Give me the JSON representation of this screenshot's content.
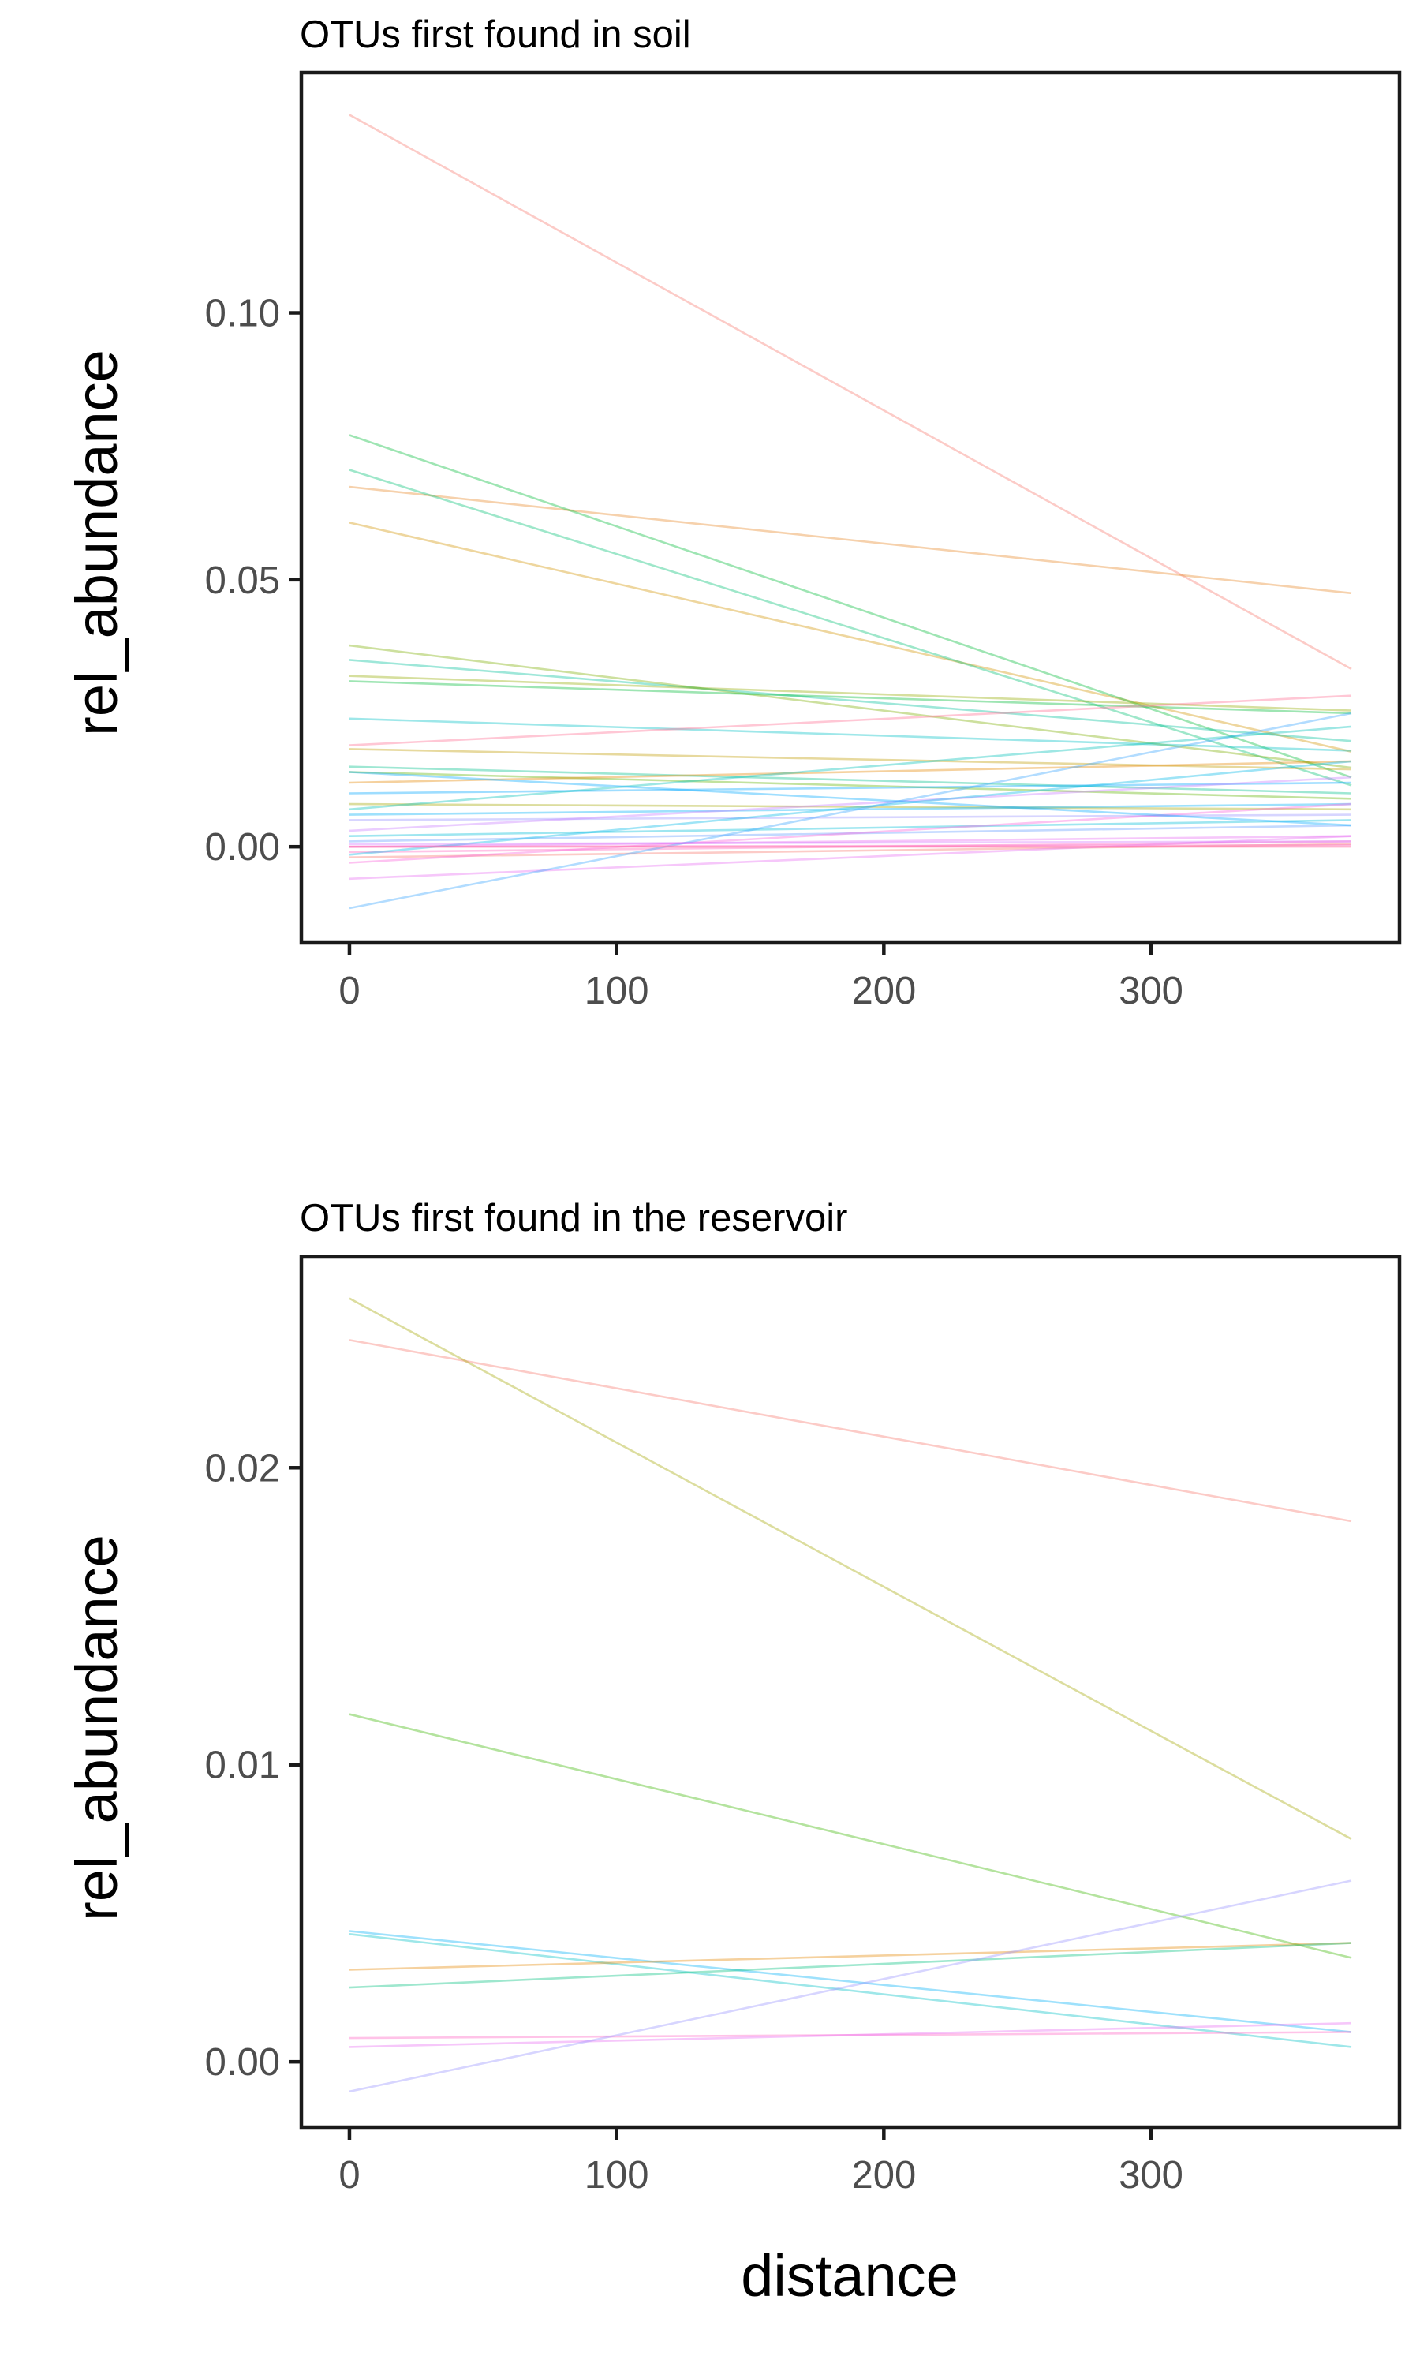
{
  "figure": {
    "shared_xlabel": "distance"
  },
  "chart_data": [
    {
      "type": "line",
      "title": "OTUs first found in soil",
      "xlabel": "",
      "ylabel": "rel_abundance",
      "xlim": [
        -18,
        393
      ],
      "ylim": [
        -0.018,
        0.145
      ],
      "xticks": [
        0,
        100,
        200,
        300
      ],
      "xtick_labels": [
        "0",
        "100",
        "200",
        "300"
      ],
      "yticks": [
        0.0,
        0.05,
        0.1
      ],
      "ytick_labels": [
        "0.00",
        "0.05",
        "0.10"
      ],
      "grid": false,
      "legend": "none",
      "x": [
        0,
        375
      ],
      "series": [
        {
          "values": [
            0.1371,
            0.0333
          ],
          "color": "#F8766D"
        },
        {
          "values": [
            0.0674,
            0.0475
          ],
          "color": "#E88526"
        },
        {
          "values": [
            0.0607,
            0.0178
          ],
          "color": "#D39200"
        },
        {
          "values": [
            0.0771,
            0.013
          ],
          "color": "#00BA38"
        },
        {
          "values": [
            0.0706,
            0.0115
          ],
          "color": "#00BF74"
        },
        {
          "values": [
            0.0377,
            0.0148
          ],
          "color": "#7CAE00"
        },
        {
          "values": [
            0.035,
            0.0198
          ],
          "color": "#00C19A"
        },
        {
          "values": [
            0.032,
            0.0255
          ],
          "color": "#93AA00"
        },
        {
          "values": [
            0.031,
            0.025
          ],
          "color": "#00BA38"
        },
        {
          "values": [
            0.024,
            0.018
          ],
          "color": "#00BFC4"
        },
        {
          "values": [
            0.019,
            0.0283
          ],
          "color": "#FF6C91"
        },
        {
          "values": [
            0.0183,
            0.0145
          ],
          "color": "#C09B00"
        },
        {
          "values": [
            0.015,
            0.01
          ],
          "color": "#00C08B"
        },
        {
          "values": [
            0.014,
            0.009
          ],
          "color": "#5EB300"
        },
        {
          "values": [
            0.012,
            0.016
          ],
          "color": "#E58700"
        },
        {
          "values": [
            0.01,
            0.012
          ],
          "color": "#00A6FF"
        },
        {
          "values": [
            0.008,
            0.007
          ],
          "color": "#A3A500"
        },
        {
          "values": [
            0.006,
            0.008
          ],
          "color": "#00B0F6"
        },
        {
          "values": [
            0.005,
            0.006
          ],
          "color": "#9590FF"
        },
        {
          "values": [
            0.003,
            0.013
          ],
          "color": "#C77CFF"
        },
        {
          "values": [
            0.002,
            0.005
          ],
          "color": "#00BCD8"
        },
        {
          "values": [
            0.001,
            0.004
          ],
          "color": "#619CFF"
        },
        {
          "values": [
            0.0,
            0.002
          ],
          "color": "#E76BF3"
        },
        {
          "values": [
            -0.001,
            0.001
          ],
          "color": "#FF62BC"
        },
        {
          "values": [
            -0.002,
            0.0005
          ],
          "color": "#F8766D"
        },
        {
          "values": [
            -0.0015,
            0.016
          ],
          "color": "#00B8E7"
        },
        {
          "values": [
            -0.003,
            0.008
          ],
          "color": "#FA62DB"
        },
        {
          "values": [
            -0.006,
            0.002
          ],
          "color": "#E76BF3"
        },
        {
          "values": [
            -0.0115,
            0.025
          ],
          "color": "#35A2FF"
        },
        {
          "values": [
            0.0,
            0.0003
          ],
          "color": "#FF61C3"
        },
        {
          "values": [
            0.0,
            0.0
          ],
          "color": "#FF6A98"
        },
        {
          "values": [
            0.0005,
            0.001
          ],
          "color": "#D575FE"
        },
        {
          "values": [
            0.007,
            0.0225
          ],
          "color": "#00C0B8"
        },
        {
          "values": [
            0.014,
            0.004
          ],
          "color": "#00A9FF"
        }
      ]
    },
    {
      "type": "line",
      "title": "OTUs first found in the reservoir",
      "xlabel": "distance",
      "ylabel": "rel_abundance",
      "xlim": [
        -18,
        393
      ],
      "ylim": [
        -0.0022,
        0.0271
      ],
      "xticks": [
        0,
        100,
        200,
        300
      ],
      "xtick_labels": [
        "0",
        "100",
        "200",
        "300"
      ],
      "yticks": [
        0.0,
        0.01,
        0.02
      ],
      "ytick_labels": [
        "0.00",
        "0.01",
        "0.02"
      ],
      "grid": false,
      "legend": "none",
      "x": [
        0,
        375
      ],
      "series": [
        {
          "values": [
            0.0243,
            0.0182
          ],
          "color": "#F8766D"
        },
        {
          "values": [
            0.0257,
            0.0075
          ],
          "color": "#A3A500"
        },
        {
          "values": [
            0.0117,
            0.0035
          ],
          "color": "#39B600"
        },
        {
          "values": [
            0.0044,
            0.001
          ],
          "color": "#00B0F6"
        },
        {
          "values": [
            0.0043,
            0.0005
          ],
          "color": "#00BFC4"
        },
        {
          "values": [
            0.0031,
            0.004
          ],
          "color": "#E58700"
        },
        {
          "values": [
            0.0025,
            0.004
          ],
          "color": "#00BF7D"
        },
        {
          "values": [
            0.0008,
            0.001
          ],
          "color": "#FF61C3"
        },
        {
          "values": [
            0.0005,
            0.0013
          ],
          "color": "#E76BF3"
        },
        {
          "values": [
            -0.001,
            0.0061
          ],
          "color": "#9590FF"
        }
      ]
    }
  ]
}
